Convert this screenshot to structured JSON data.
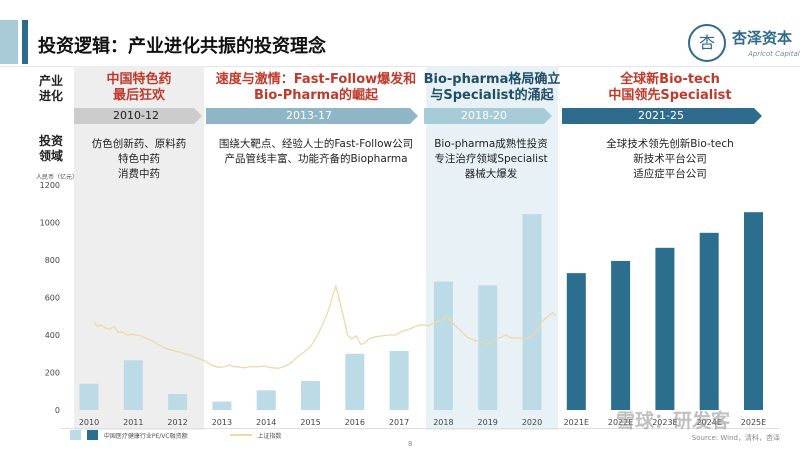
{
  "header": {
    "title": "投资逻辑：产业进化共振的投资理念",
    "logo_name": "杏泽资本",
    "logo_seal": "杏",
    "logo_sub": "Apricot Capital"
  },
  "side_labels": {
    "industry": "产业\n进化",
    "investment": "投资\n领域"
  },
  "periods": [
    {
      "head": "中国特色药\n最后狂欢",
      "range": "2010-12",
      "desc": "仿色创新药、原料药\n特色中药\n消费中药"
    },
    {
      "head": "速度与激情：Fast-Follow爆发和\nBio-Pharma的崛起",
      "range": "2013-17",
      "desc": "围绕大靶点、经验人士的Fast-Follow公司\n产品管线丰富、功能齐备的Biopharma"
    },
    {
      "head": "Bio-pharma格局确立\n与Specialist的涌起",
      "range": "2018-20",
      "desc": "Bio-pharma成熟性投资\n专注治疗领域Specialist\n器械大爆发"
    },
    {
      "head": "全球新Bio-tech\n中国领先Specialist",
      "range": "2021-25",
      "desc": "全球技术领先创新Bio-tech\n新技术平台公司\n适应症平台公司"
    }
  ],
  "colors": {
    "bar_light": "#bcdbe6",
    "bar_dark": "#2b6e8e",
    "line": "#eed9a8",
    "arrow_grey": "#cccccc",
    "arrow_mid": "#8fb6c6",
    "arrow_light": "#a8cbd8",
    "arrow_dark": "#2f6b8c"
  },
  "chart_data": {
    "type": "bar",
    "unit_label": "人民币（亿元）",
    "categories": [
      "2010",
      "2011",
      "2012",
      "2013",
      "2014",
      "2015",
      "2016",
      "2017",
      "2018",
      "2019",
      "2020",
      "2021E",
      "2022E",
      "2023E",
      "2024E",
      "2025E"
    ],
    "ylim": [
      0,
      1200
    ],
    "yticks": [
      0,
      200,
      400,
      600,
      800,
      1000,
      1200
    ],
    "series": [
      {
        "name": "中国医疗健康行业PE/VC融资额",
        "values": [
          140,
          265,
          85,
          45,
          105,
          155,
          300,
          315,
          685,
          665,
          1045,
          null,
          null,
          null,
          null,
          null
        ]
      },
      {
        "name": "",
        "values": [
          null,
          null,
          null,
          null,
          null,
          null,
          null,
          null,
          null,
          null,
          null,
          730,
          795,
          865,
          945,
          1055
        ]
      }
    ],
    "line_series": {
      "name": "上证指数",
      "points": [
        [
          0.0,
          470
        ],
        [
          0.08,
          445
        ],
        [
          0.15,
          455
        ],
        [
          0.25,
          438
        ],
        [
          0.35,
          430
        ],
        [
          0.45,
          445
        ],
        [
          0.55,
          415
        ],
        [
          0.65,
          415
        ],
        [
          0.75,
          400
        ],
        [
          0.85,
          405
        ],
        [
          0.95,
          400
        ],
        [
          1.05,
          398
        ],
        [
          1.15,
          385
        ],
        [
          1.3,
          370
        ],
        [
          1.45,
          350
        ],
        [
          1.6,
          330
        ],
        [
          1.75,
          320
        ],
        [
          1.9,
          310
        ],
        [
          2.05,
          300
        ],
        [
          2.2,
          290
        ],
        [
          2.35,
          275
        ],
        [
          2.5,
          262
        ],
        [
          2.65,
          240
        ],
        [
          2.8,
          228
        ],
        [
          2.95,
          230
        ],
        [
          3.05,
          240
        ],
        [
          3.15,
          232
        ],
        [
          3.25,
          230
        ],
        [
          3.4,
          225
        ],
        [
          3.55,
          232
        ],
        [
          3.7,
          230
        ],
        [
          3.85,
          235
        ],
        [
          3.95,
          228
        ],
        [
          4.05,
          225
        ],
        [
          4.15,
          222
        ],
        [
          4.3,
          232
        ],
        [
          4.45,
          252
        ],
        [
          4.6,
          285
        ],
        [
          4.75,
          310
        ],
        [
          4.85,
          330
        ],
        [
          4.95,
          360
        ],
        [
          5.05,
          400
        ],
        [
          5.15,
          450
        ],
        [
          5.25,
          505
        ],
        [
          5.33,
          560
        ],
        [
          5.4,
          620
        ],
        [
          5.46,
          660
        ],
        [
          5.52,
          610
        ],
        [
          5.58,
          545
        ],
        [
          5.66,
          470
        ],
        [
          5.72,
          400
        ],
        [
          5.82,
          380
        ],
        [
          5.92,
          395
        ],
        [
          6.02,
          350
        ],
        [
          6.1,
          355
        ],
        [
          6.2,
          380
        ],
        [
          6.35,
          390
        ],
        [
          6.5,
          395
        ],
        [
          6.65,
          400
        ],
        [
          6.8,
          400
        ],
        [
          6.95,
          420
        ],
        [
          7.1,
          430
        ],
        [
          7.25,
          445
        ],
        [
          7.4,
          455
        ],
        [
          7.55,
          450
        ],
        [
          7.7,
          470
        ],
        [
          7.85,
          480
        ],
        [
          7.95,
          500
        ],
        [
          8.05,
          480
        ],
        [
          8.15,
          450
        ],
        [
          8.25,
          430
        ],
        [
          8.35,
          405
        ],
        [
          8.45,
          385
        ],
        [
          8.6,
          370
        ],
        [
          8.75,
          360
        ],
        [
          8.9,
          350
        ],
        [
          9.0,
          370
        ],
        [
          9.1,
          380
        ],
        [
          9.2,
          390
        ],
        [
          9.3,
          400
        ],
        [
          9.4,
          385
        ],
        [
          9.55,
          385
        ],
        [
          9.7,
          380
        ],
        [
          9.85,
          390
        ],
        [
          9.95,
          420
        ],
        [
          10.05,
          445
        ],
        [
          10.15,
          480
        ],
        [
          10.25,
          500
        ],
        [
          10.35,
          520
        ],
        [
          10.42,
          500
        ]
      ]
    }
  },
  "footer": {
    "source": "Source: Wind，清科，杏泽",
    "page": "8",
    "watermark": "雪球：研发客"
  }
}
